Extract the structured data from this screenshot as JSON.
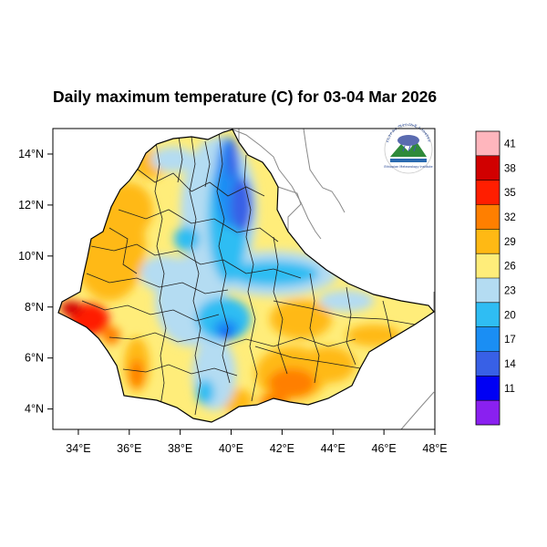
{
  "title": "Daily maximum temperature (C) for 03-04 Mar 2026",
  "map": {
    "lon_range": [
      33,
      48
    ],
    "lat_range": [
      3.2,
      15
    ],
    "x_ticks": [
      "34°E",
      "36°E",
      "38°E",
      "40°E",
      "42°E",
      "44°E",
      "46°E",
      "48°E"
    ],
    "y_ticks": [
      "14°N",
      "12°N",
      "10°N",
      "8°N",
      "6°N",
      "4°N"
    ]
  },
  "colorbar": {
    "labels": [
      "41",
      "38",
      "35",
      "32",
      "29",
      "26",
      "23",
      "20",
      "17",
      "14",
      "11"
    ],
    "colors": [
      "#ffb6bd",
      "#d10000",
      "#ff1e00",
      "#ff7f00",
      "#ffb914",
      "#ffed7a",
      "#b4dcf2",
      "#2fbdf3",
      "#1a8ef4",
      "#3860e6",
      "#0000f4",
      "#8a20f0"
    ]
  },
  "logo": {
    "name": "meteorology-agency-logo",
    "text_top": "የኢትዮጵያ ሜትዮሮሎጂ ኢንስቲትዩት",
    "text_bottom": "Ethiopian Meteorology Institute"
  }
}
